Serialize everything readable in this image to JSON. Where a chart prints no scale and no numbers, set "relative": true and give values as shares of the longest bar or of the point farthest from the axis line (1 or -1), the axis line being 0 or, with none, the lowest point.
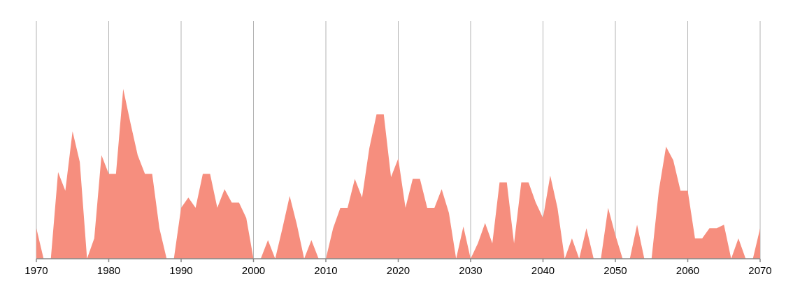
{
  "chart_data": {
    "type": "area",
    "relative": true,
    "x": [
      1970,
      1971,
      1972,
      1973,
      1974,
      1975,
      1976,
      1977,
      1978,
      1979,
      1980,
      1981,
      1982,
      1983,
      1984,
      1985,
      1986,
      1987,
      1988,
      1989,
      1990,
      1991,
      1992,
      1993,
      1994,
      1995,
      1996,
      1997,
      1998,
      1999,
      2000,
      2001,
      2002,
      2003,
      2004,
      2005,
      2006,
      2007,
      2008,
      2009,
      2010,
      2011,
      2012,
      2013,
      2014,
      2015,
      2016,
      2017,
      2018,
      2019,
      2020,
      2021,
      2022,
      2023,
      2024,
      2025,
      2026,
      2027,
      2028,
      2029,
      2030,
      2031,
      2032,
      2033,
      2034,
      2035,
      2036,
      2037,
      2038,
      2039,
      2040,
      2041,
      2042,
      2043,
      2044,
      2045,
      2046,
      2047,
      2048,
      2049,
      2050,
      2051,
      2052,
      2053,
      2054,
      2055,
      2056,
      2057,
      2058,
      2059,
      2060,
      2061,
      2062,
      2063,
      2064,
      2065,
      2066,
      2067,
      2068,
      2069,
      2070
    ],
    "series": [
      {
        "color": "#f68e7e",
        "values": [
          0.18,
          0,
          0,
          0.51,
          0.4,
          0.75,
          0.57,
          0,
          0.12,
          0.61,
          0.5,
          0.5,
          1,
          0.8,
          0.61,
          0.5,
          0.5,
          0.18,
          0,
          0,
          0.3,
          0.36,
          0.3,
          0.5,
          0.5,
          0.3,
          0.41,
          0.33,
          0.33,
          0.24,
          0,
          0,
          0.11,
          0,
          0.18,
          0.37,
          0.2,
          0,
          0.11,
          0,
          0,
          0.18,
          0.3,
          0.3,
          0.47,
          0.36,
          0.65,
          0.85,
          0.85,
          0.48,
          0.59,
          0.3,
          0.47,
          0.47,
          0.3,
          0.3,
          0.41,
          0.27,
          0,
          0.19,
          0,
          0.09,
          0.21,
          0.09,
          0.45,
          0.45,
          0.09,
          0.45,
          0.45,
          0.33,
          0.24,
          0.49,
          0.3,
          0,
          0.12,
          0,
          0.18,
          0,
          0,
          0.3,
          0.14,
          0,
          0,
          0.2,
          0,
          0,
          0.4,
          0.66,
          0.58,
          0.4,
          0.4,
          0.12,
          0.12,
          0.18,
          0.18,
          0.2,
          0,
          0.12,
          0,
          0,
          0.18
        ]
      }
    ],
    "xlim": [
      1970,
      2070
    ],
    "xticks": [
      1970,
      1980,
      1990,
      2000,
      2010,
      2020,
      2030,
      2040,
      2050,
      2060,
      2070
    ],
    "grid": "x"
  }
}
